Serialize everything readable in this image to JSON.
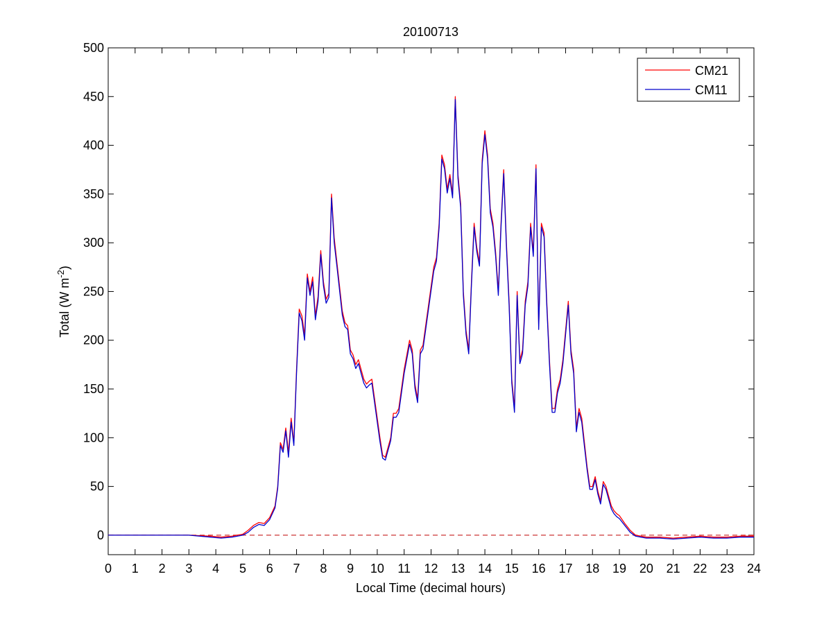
{
  "chart_data": {
    "type": "line",
    "title": "20100713",
    "xlabel": "Local Time (decimal hours)",
    "ylabel": {
      "main": "Total (W m",
      "superscript": "-2",
      "close": ")"
    },
    "xlim": [
      0,
      24
    ],
    "ylim": [
      -20,
      500
    ],
    "x_ticks": [
      0,
      1,
      2,
      3,
      4,
      5,
      6,
      7,
      8,
      9,
      10,
      11,
      12,
      13,
      14,
      15,
      16,
      17,
      18,
      19,
      20,
      21,
      22,
      23,
      24
    ],
    "y_ticks": [
      0,
      50,
      100,
      150,
      200,
      250,
      300,
      350,
      400,
      450,
      500
    ],
    "grid": false,
    "legend_position": "top-right",
    "reference_line": {
      "y": 0,
      "style": "dashed",
      "color": "#cc3333"
    },
    "series": [
      {
        "name": "CM21",
        "color": "#ff0000",
        "x": [
          0,
          2,
          3,
          3.8,
          4.2,
          4.6,
          5.0,
          5.2,
          5.4,
          5.6,
          5.8,
          6.0,
          6.2,
          6.3,
          6.4,
          6.5,
          6.6,
          6.7,
          6.8,
          6.9,
          7.0,
          7.1,
          7.2,
          7.3,
          7.4,
          7.5,
          7.6,
          7.7,
          7.8,
          7.9,
          8.0,
          8.1,
          8.2,
          8.3,
          8.4,
          8.5,
          8.6,
          8.7,
          8.8,
          8.9,
          9.0,
          9.1,
          9.2,
          9.3,
          9.4,
          9.5,
          9.6,
          9.7,
          9.8,
          9.9,
          10.0,
          10.1,
          10.2,
          10.3,
          10.4,
          10.5,
          10.6,
          10.7,
          10.8,
          10.9,
          11.0,
          11.1,
          11.2,
          11.3,
          11.4,
          11.5,
          11.6,
          11.7,
          11.8,
          11.9,
          12.0,
          12.1,
          12.2,
          12.3,
          12.4,
          12.5,
          12.6,
          12.7,
          12.8,
          12.9,
          13.0,
          13.1,
          13.2,
          13.3,
          13.4,
          13.5,
          13.6,
          13.7,
          13.8,
          13.9,
          14.0,
          14.1,
          14.2,
          14.3,
          14.4,
          14.5,
          14.6,
          14.7,
          14.8,
          14.9,
          15.0,
          15.1,
          15.2,
          15.3,
          15.4,
          15.5,
          15.6,
          15.7,
          15.8,
          15.9,
          16.0,
          16.1,
          16.2,
          16.3,
          16.4,
          16.5,
          16.6,
          16.7,
          16.8,
          16.9,
          17.0,
          17.1,
          17.2,
          17.3,
          17.4,
          17.5,
          17.6,
          17.7,
          17.8,
          17.9,
          18.0,
          18.1,
          18.2,
          18.3,
          18.4,
          18.5,
          18.6,
          18.7,
          18.8,
          18.9,
          19.0,
          19.2,
          19.4,
          19.6,
          19.8,
          20.0,
          20.5,
          21,
          21.5,
          22,
          22.5,
          23,
          23.5,
          24
        ],
        "y": [
          0,
          0,
          0,
          -1,
          -2,
          -1,
          1,
          5,
          10,
          13,
          12,
          18,
          30,
          50,
          95,
          88,
          110,
          85,
          120,
          95,
          170,
          232,
          225,
          205,
          268,
          250,
          265,
          225,
          245,
          292,
          260,
          242,
          248,
          350,
          305,
          280,
          255,
          230,
          218,
          215,
          190,
          185,
          175,
          180,
          170,
          160,
          155,
          158,
          160,
          140,
          120,
          100,
          82,
          80,
          90,
          100,
          125,
          125,
          130,
          150,
          170,
          185,
          200,
          190,
          155,
          140,
          190,
          195,
          215,
          235,
          255,
          275,
          285,
          320,
          390,
          380,
          355,
          370,
          350,
          450,
          370,
          340,
          250,
          210,
          190,
          260,
          320,
          295,
          280,
          385,
          415,
          390,
          335,
          320,
          290,
          250,
          320,
          375,
          300,
          240,
          160,
          130,
          250,
          180,
          190,
          240,
          260,
          320,
          290,
          380,
          215,
          320,
          310,
          240,
          180,
          130,
          130,
          150,
          160,
          180,
          210,
          240,
          190,
          170,
          110,
          130,
          120,
          95,
          70,
          50,
          50,
          60,
          45,
          35,
          55,
          50,
          40,
          30,
          25,
          22,
          20,
          12,
          5,
          0,
          -1,
          -2,
          -2,
          -3,
          -2,
          -1,
          -2,
          -2,
          -1,
          -1
        ]
      },
      {
        "name": "CM11",
        "color": "#0000cc",
        "x": [
          0,
          2,
          3,
          3.8,
          4.2,
          4.6,
          5.0,
          5.2,
          5.4,
          5.6,
          5.8,
          6.0,
          6.2,
          6.3,
          6.4,
          6.5,
          6.6,
          6.7,
          6.8,
          6.9,
          7.0,
          7.1,
          7.2,
          7.3,
          7.4,
          7.5,
          7.6,
          7.7,
          7.8,
          7.9,
          8.0,
          8.1,
          8.2,
          8.3,
          8.4,
          8.5,
          8.6,
          8.7,
          8.8,
          8.9,
          9.0,
          9.1,
          9.2,
          9.3,
          9.4,
          9.5,
          9.6,
          9.7,
          9.8,
          9.9,
          10.0,
          10.1,
          10.2,
          10.3,
          10.4,
          10.5,
          10.6,
          10.7,
          10.8,
          10.9,
          11.0,
          11.1,
          11.2,
          11.3,
          11.4,
          11.5,
          11.6,
          11.7,
          11.8,
          11.9,
          12.0,
          12.1,
          12.2,
          12.3,
          12.4,
          12.5,
          12.6,
          12.7,
          12.8,
          12.9,
          13.0,
          13.1,
          13.2,
          13.3,
          13.4,
          13.5,
          13.6,
          13.7,
          13.8,
          13.9,
          14.0,
          14.1,
          14.2,
          14.3,
          14.4,
          14.5,
          14.6,
          14.7,
          14.8,
          14.9,
          15.0,
          15.1,
          15.2,
          15.3,
          15.4,
          15.5,
          15.6,
          15.7,
          15.8,
          15.9,
          16.0,
          16.1,
          16.2,
          16.3,
          16.4,
          16.5,
          16.6,
          16.7,
          16.8,
          16.9,
          17.0,
          17.1,
          17.2,
          17.3,
          17.4,
          17.5,
          17.6,
          17.7,
          17.8,
          17.9,
          18.0,
          18.1,
          18.2,
          18.3,
          18.4,
          18.5,
          18.6,
          18.7,
          18.8,
          18.9,
          19.0,
          19.2,
          19.4,
          19.6,
          19.8,
          20.0,
          20.5,
          21,
          21.5,
          22,
          22.5,
          23,
          23.5,
          24
        ],
        "y": [
          0,
          0,
          0,
          -2,
          -3,
          -2,
          0,
          3,
          8,
          11,
          10,
          16,
          28,
          48,
          92,
          85,
          107,
          80,
          116,
          92,
          166,
          228,
          220,
          200,
          264,
          246,
          260,
          221,
          240,
          288,
          256,
          238,
          244,
          346,
          300,
          276,
          251,
          226,
          214,
          211,
          186,
          181,
          171,
          176,
          166,
          156,
          151,
          154,
          156,
          136,
          116,
          96,
          79,
          77,
          87,
          97,
          121,
          121,
          126,
          146,
          166,
          181,
          196,
          186,
          151,
          136,
          186,
          191,
          211,
          231,
          251,
          271,
          281,
          316,
          386,
          376,
          351,
          366,
          346,
          447,
          366,
          336,
          246,
          206,
          186,
          256,
          316,
          291,
          276,
          381,
          411,
          386,
          331,
          316,
          286,
          246,
          316,
          371,
          296,
          236,
          156,
          126,
          246,
          176,
          186,
          236,
          256,
          316,
          286,
          376,
          211,
          316,
          306,
          236,
          176,
          126,
          126,
          146,
          156,
          176,
          206,
          236,
          186,
          166,
          106,
          126,
          116,
          91,
          67,
          47,
          47,
          57,
          42,
          32,
          52,
          47,
          37,
          27,
          22,
          19,
          17,
          10,
          3,
          -1,
          -2,
          -3,
          -3,
          -4,
          -3,
          -2,
          -3,
          -3,
          -2,
          -2
        ]
      }
    ]
  }
}
